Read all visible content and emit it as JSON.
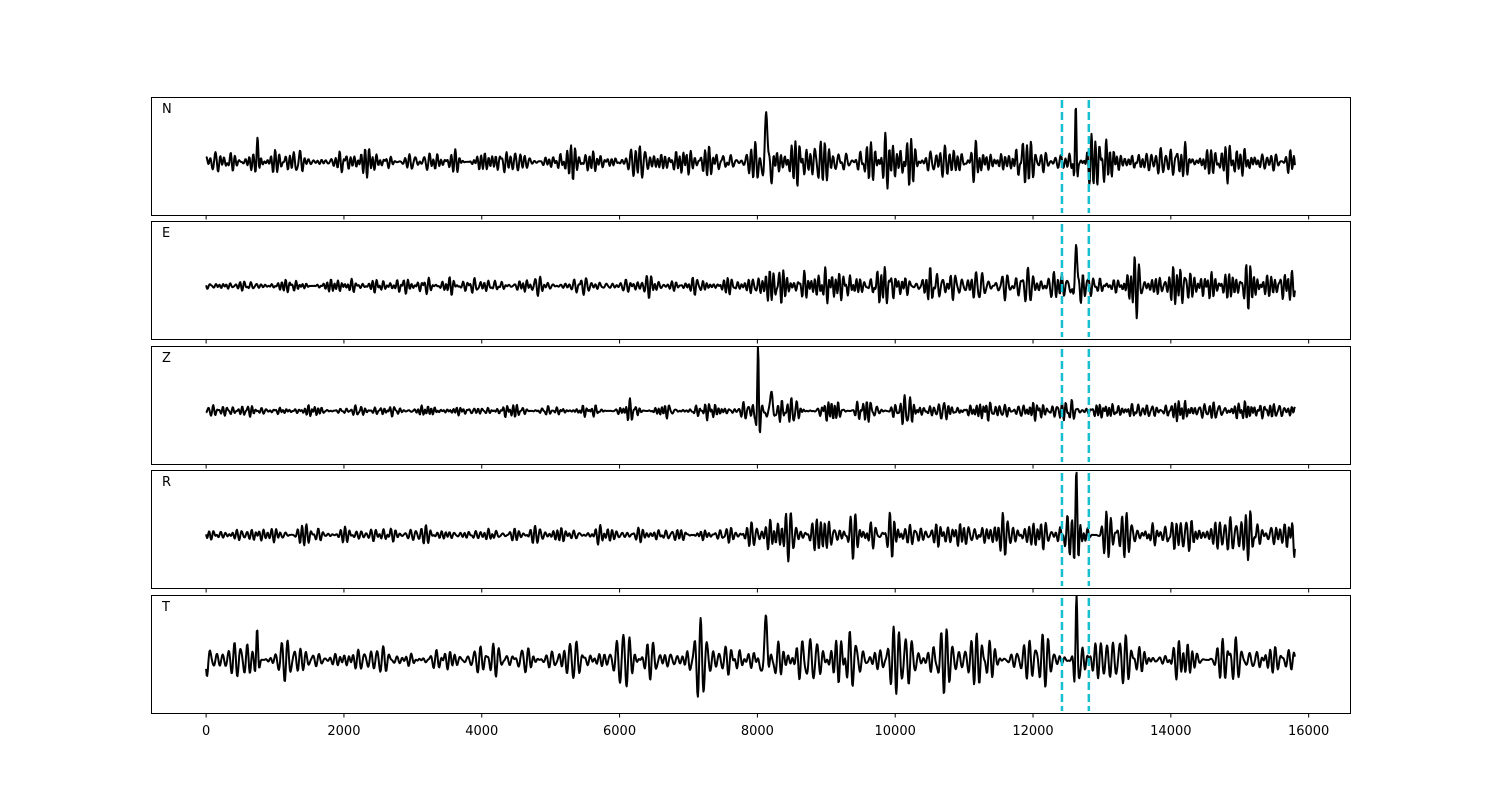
{
  "chart_data": {
    "type": "line",
    "xlim": [
      -800,
      16600
    ],
    "xticks": [
      0,
      2000,
      4000,
      6000,
      8000,
      10000,
      12000,
      14000,
      16000
    ],
    "x_start": 0,
    "x_end": 15800,
    "markers": [
      12420,
      12810
    ],
    "colors": {
      "trace": "#000000",
      "marker": "#17becf",
      "frame": "#000000"
    },
    "grid": false,
    "panels": [
      {
        "label": "N",
        "seed": 11,
        "noise": [
          [
            0,
            0.3
          ],
          [
            700,
            0.3
          ],
          [
            760,
            0.55
          ],
          [
            820,
            0.3
          ],
          [
            5000,
            0.32
          ],
          [
            6500,
            0.42
          ],
          [
            7800,
            0.45
          ],
          [
            8000,
            0.5
          ],
          [
            9000,
            0.7
          ],
          [
            10500,
            0.62
          ],
          [
            12300,
            0.45
          ],
          [
            13000,
            0.55
          ],
          [
            15800,
            0.55
          ]
        ],
        "events": [
          {
            "t": 750,
            "amp": 0.55,
            "width": 22
          },
          {
            "t": 8130,
            "amp": 0.95,
            "width": 40
          },
          {
            "t": 12620,
            "amp": 1.15,
            "width": 18
          }
        ]
      },
      {
        "label": "E",
        "seed": 23,
        "noise": [
          [
            0,
            0.18
          ],
          [
            5000,
            0.18
          ],
          [
            7800,
            0.22
          ],
          [
            8000,
            0.4
          ],
          [
            8700,
            0.48
          ],
          [
            11000,
            0.4
          ],
          [
            12000,
            0.42
          ],
          [
            13500,
            0.45
          ],
          [
            15800,
            0.48
          ]
        ],
        "events": [
          {
            "t": 12630,
            "amp": 1.1,
            "width": 28
          }
        ]
      },
      {
        "label": "Z",
        "seed": 37,
        "noise": [
          [
            0,
            0.12
          ],
          [
            6500,
            0.15
          ],
          [
            7800,
            0.2
          ],
          [
            8500,
            0.25
          ],
          [
            12000,
            0.22
          ],
          [
            13500,
            0.25
          ],
          [
            15800,
            0.28
          ]
        ],
        "events": [
          {
            "t": 8010,
            "amp": 1.2,
            "width": 18
          },
          {
            "t": 8200,
            "amp": 0.35,
            "width": 40
          }
        ]
      },
      {
        "label": "R",
        "seed": 53,
        "noise": [
          [
            0,
            0.2
          ],
          [
            5000,
            0.18
          ],
          [
            7800,
            0.22
          ],
          [
            8000,
            0.4
          ],
          [
            9200,
            0.5
          ],
          [
            11000,
            0.4
          ],
          [
            12300,
            0.45
          ],
          [
            13500,
            0.45
          ],
          [
            15800,
            0.48
          ]
        ],
        "events": [
          {
            "t": 12630,
            "amp": 1.15,
            "width": 24
          }
        ]
      },
      {
        "label": "T",
        "seed": 71,
        "noise": [
          [
            0,
            0.35
          ],
          [
            700,
            0.35
          ],
          [
            760,
            0.55
          ],
          [
            820,
            0.35
          ],
          [
            5000,
            0.38
          ],
          [
            6500,
            0.48
          ],
          [
            7800,
            0.5
          ],
          [
            8000,
            0.7
          ],
          [
            9500,
            0.85
          ],
          [
            11000,
            0.6
          ],
          [
            12300,
            0.55
          ],
          [
            13000,
            0.6
          ],
          [
            15800,
            0.55
          ]
        ],
        "events": [
          {
            "t": 740,
            "amp": 0.6,
            "width": 22
          },
          {
            "t": 8130,
            "amp": 0.95,
            "width": 38
          },
          {
            "t": 12630,
            "amp": 1.2,
            "width": 22
          }
        ]
      }
    ]
  }
}
